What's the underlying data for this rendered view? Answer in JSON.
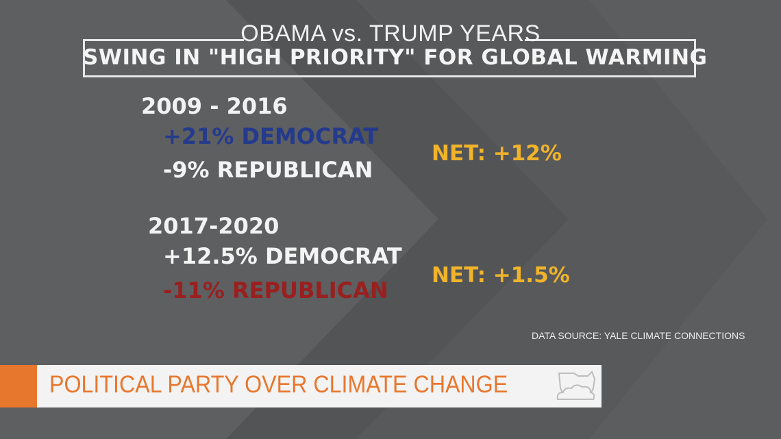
{
  "header": {
    "subtitle": "OBAMA vs. TRUMP YEARS",
    "title": "SWING IN \"HIGH PRIORITY\" FOR GLOBAL WARMING"
  },
  "periods": [
    {
      "label": "2009 - 2016",
      "democrat": "+21% DEMOCRAT",
      "republican": "-9% REPUBLICAN",
      "net": "NET: +12%"
    },
    {
      "label": "2017-2020",
      "democrat": "+12.5% DEMOCRAT",
      "republican": "-11% REPUBLICAN",
      "net": "NET: +1.5%"
    }
  ],
  "source": "DATA SOURCE: YALE CLIMATE CONNECTIONS",
  "lower_third": {
    "label": "POLITICAL PARTY OVER CLIMATE CHANGE",
    "logo_icon": "state-cloud-logo-icon"
  },
  "colors": {
    "background": "#58595b",
    "democrat_blue": "#243a8c",
    "republican_red": "#9a1f1f",
    "net_gold": "#f0b32a",
    "accent_orange": "#e8772e"
  }
}
